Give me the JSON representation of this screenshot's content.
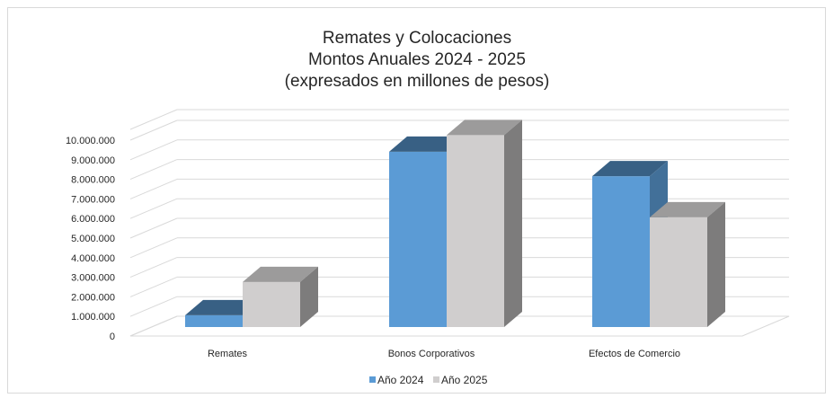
{
  "chart_data": {
    "type": "bar",
    "title_lines": [
      "Remates y Colocaciones",
      "Montos Anuales 2024 - 2025",
      "(expresados en millones de pesos)"
    ],
    "categories": [
      "Remates",
      "Bonos Corporativos",
      "Efectos de Comercio"
    ],
    "series": [
      {
        "name": "Año 2024",
        "values": [
          600000,
          8950000,
          7700000
        ],
        "color": "#5b9bd5"
      },
      {
        "name": "Año 2025",
        "values": [
          2300000,
          9800000,
          5600000
        ],
        "color": "#d0cece"
      }
    ],
    "y_ticks": [
      "0",
      "1.000.000",
      "2.000.000",
      "3.000.000",
      "4.000.000",
      "5.000.000",
      "6.000.000",
      "7.000.000",
      "8.000.000",
      "9.000.000",
      "10.000.000"
    ],
    "ylim": [
      0,
      10000000
    ],
    "grid": true,
    "legend_position": "bottom",
    "style": "3d-column"
  }
}
